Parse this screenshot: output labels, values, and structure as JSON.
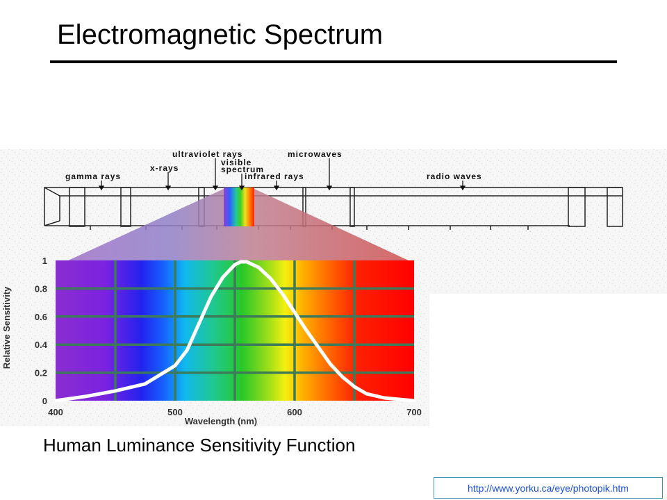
{
  "title": "Electromagnetic Spectrum",
  "caption": "Human Luminance Sensitivity Function",
  "source_url": "http://www.yorku.ca/eye/photopik.htm",
  "spectrum_bands": {
    "gamma": "gamma rays",
    "xrays": "x-rays",
    "ultraviolet": "ultraviolet rays",
    "visible_line1": "visible",
    "visible_line2": "spectrum",
    "infrared": "infrared rays",
    "microwaves": "microwaves",
    "radio": "radio waves"
  },
  "chart_data": {
    "type": "line",
    "xlabel": "Wavelength (nm)",
    "ylabel": "Relative Sensitivity",
    "xlim": [
      400,
      700
    ],
    "ylim": [
      0,
      1
    ],
    "x_ticks": [
      400,
      500,
      600,
      700
    ],
    "y_ticks": [
      0,
      0.2,
      0.4,
      0.6,
      0.8,
      1
    ],
    "y_tick_labels": [
      "0",
      "0.2",
      "0.4",
      "0.6",
      "0.8",
      "1"
    ],
    "grid": true,
    "background": "visible spectrum colors",
    "series": [
      {
        "color": "#ffffff",
        "x": [
          400,
          425,
          450,
          475,
          500,
          510,
          520,
          530,
          540,
          550,
          555,
          560,
          570,
          580,
          590,
          600,
          610,
          620,
          630,
          640,
          650,
          660,
          675,
          700
        ],
        "y": [
          0.0,
          0.03,
          0.07,
          0.12,
          0.25,
          0.36,
          0.55,
          0.74,
          0.88,
          0.97,
          0.99,
          0.99,
          0.95,
          0.87,
          0.76,
          0.63,
          0.5,
          0.38,
          0.26,
          0.17,
          0.1,
          0.05,
          0.02,
          0.0
        ]
      }
    ]
  }
}
